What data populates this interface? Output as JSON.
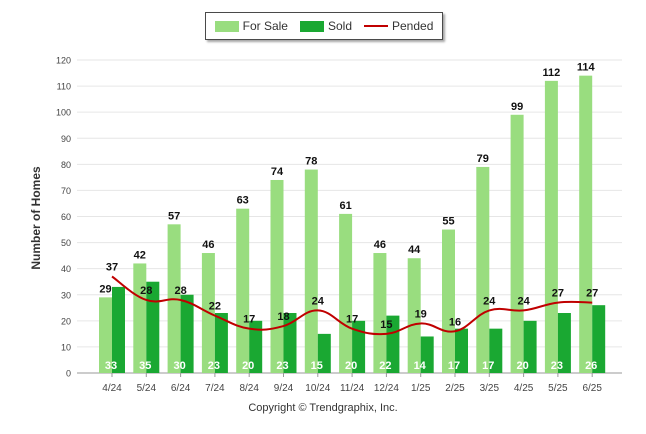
{
  "chart_data": {
    "type": "bar",
    "ylabel": "Number of Homes",
    "ylim": [
      0,
      120
    ],
    "yticks": [
      0,
      10,
      20,
      30,
      40,
      50,
      60,
      70,
      80,
      90,
      100,
      110,
      120
    ],
    "categories": [
      "4/24",
      "5/24",
      "6/24",
      "7/24",
      "8/24",
      "9/24",
      "10/24",
      "11/24",
      "12/24",
      "1/25",
      "2/25",
      "3/25",
      "4/25",
      "5/25",
      "6/25"
    ],
    "series": [
      {
        "name": "For Sale",
        "type": "bar",
        "color": "#99dd7f",
        "values": [
          29,
          42,
          57,
          46,
          63,
          74,
          78,
          61,
          46,
          44,
          55,
          79,
          99,
          112,
          114
        ]
      },
      {
        "name": "Sold",
        "type": "bar",
        "color": "#1aa832",
        "values": [
          33,
          35,
          30,
          23,
          20,
          23,
          15,
          20,
          22,
          14,
          17,
          17,
          20,
          23,
          26
        ]
      },
      {
        "name": "Pended",
        "type": "line",
        "color": "#c00000",
        "values": [
          37,
          28,
          28,
          22,
          17,
          18,
          24,
          17,
          15,
          19,
          16,
          24,
          24,
          27,
          27
        ]
      }
    ],
    "legend_position": "top-center",
    "grid": true
  },
  "footer": {
    "copyright": "Copyright © Trendgraphix, Inc."
  }
}
